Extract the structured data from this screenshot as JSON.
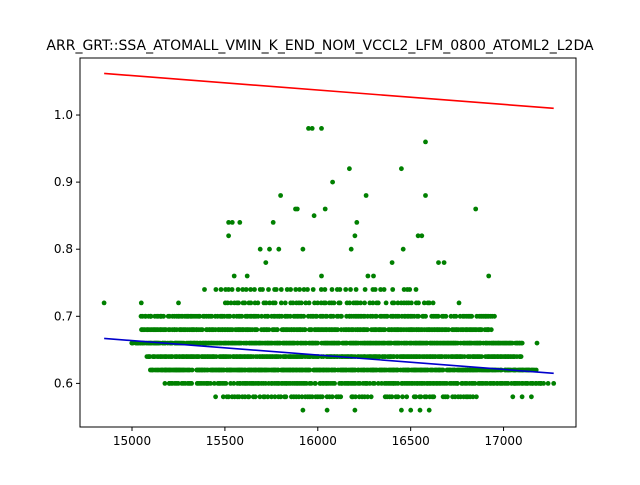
{
  "chart_data": {
    "type": "scatter",
    "title": "ARR_GRT::SSA_ATOMALL_VMIN_K_END_NOM_VCCL2_LFM_0800_ATOML2_L2DA",
    "xlabel": "",
    "ylabel": "",
    "xlim": [
      14720,
      17390
    ],
    "ylim": [
      0.535,
      1.085
    ],
    "xticks": [
      15000,
      15500,
      16000,
      16500,
      17000
    ],
    "yticks": [
      0.6,
      0.7,
      0.8,
      0.9,
      1.0
    ],
    "xtick_labels": [
      "15000",
      "15500",
      "16000",
      "16500",
      "17000"
    ],
    "ytick_labels": [
      "0.6",
      "0.7",
      "0.8",
      "0.9",
      "1.0"
    ],
    "grid": false,
    "legend": "none",
    "point_color": "#008000",
    "dense_bands": [
      {
        "y": 0.58,
        "x_range": [
          15480,
          16860
        ],
        "step": 14
      },
      {
        "y": 0.6,
        "x_range": [
          15180,
          17220
        ],
        "step": 9
      },
      {
        "y": 0.62,
        "x_range": [
          15100,
          17180
        ],
        "step": 6
      },
      {
        "y": 0.64,
        "x_range": [
          15080,
          17100
        ],
        "step": 6
      },
      {
        "y": 0.66,
        "x_range": [
          15000,
          17100
        ],
        "step": 6
      },
      {
        "y": 0.68,
        "x_range": [
          15050,
          16950
        ],
        "step": 7
      },
      {
        "y": 0.7,
        "x_range": [
          15050,
          16950
        ],
        "step": 9
      },
      {
        "y": 0.72,
        "x_range": [
          15500,
          16620
        ],
        "step": 16
      },
      {
        "y": 0.74,
        "x_range": [
          15400,
          16550
        ],
        "step": 24
      }
    ],
    "points": [
      [
        14850,
        0.72
      ],
      [
        15050,
        0.72
      ],
      [
        15100,
        0.7
      ],
      [
        15130,
        0.66
      ],
      [
        15160,
        0.7
      ],
      [
        15200,
        0.6
      ],
      [
        15180,
        0.62
      ],
      [
        15250,
        0.72
      ],
      [
        15300,
        0.7
      ],
      [
        15390,
        0.74
      ],
      [
        15520,
        0.82
      ],
      [
        15520,
        0.84
      ],
      [
        15540,
        0.84
      ],
      [
        15580,
        0.84
      ],
      [
        15550,
        0.76
      ],
      [
        15580,
        0.68
      ],
      [
        15620,
        0.76
      ],
      [
        15690,
        0.8
      ],
      [
        15720,
        0.78
      ],
      [
        15740,
        0.8
      ],
      [
        15760,
        0.84
      ],
      [
        15790,
        0.8
      ],
      [
        15800,
        0.88
      ],
      [
        15880,
        0.86
      ],
      [
        15890,
        0.86
      ],
      [
        15920,
        0.8
      ],
      [
        15950,
        0.98
      ],
      [
        15970,
        0.98
      ],
      [
        15980,
        0.85
      ],
      [
        16020,
        0.98
      ],
      [
        16020,
        0.76
      ],
      [
        16040,
        0.86
      ],
      [
        16080,
        0.9
      ],
      [
        16170,
        0.92
      ],
      [
        16180,
        0.8
      ],
      [
        16200,
        0.82
      ],
      [
        16210,
        0.84
      ],
      [
        16260,
        0.88
      ],
      [
        16270,
        0.76
      ],
      [
        16300,
        0.76
      ],
      [
        16400,
        0.78
      ],
      [
        16450,
        0.92
      ],
      [
        16460,
        0.8
      ],
      [
        16540,
        0.82
      ],
      [
        16560,
        0.82
      ],
      [
        16580,
        0.88
      ],
      [
        16580,
        0.96
      ],
      [
        16650,
        0.78
      ],
      [
        16680,
        0.78
      ],
      [
        16760,
        0.72
      ],
      [
        16850,
        0.86
      ],
      [
        16900,
        0.7
      ],
      [
        16920,
        0.76
      ],
      [
        16920,
        0.68
      ],
      [
        17180,
        0.66
      ],
      [
        17050,
        0.58
      ],
      [
        17100,
        0.58
      ],
      [
        17150,
        0.58
      ],
      [
        17200,
        0.6
      ],
      [
        17240,
        0.6
      ],
      [
        17270,
        0.6
      ],
      [
        15450,
        0.58
      ],
      [
        16450,
        0.56
      ],
      [
        16500,
        0.56
      ],
      [
        16550,
        0.56
      ],
      [
        16600,
        0.56
      ],
      [
        16050,
        0.56
      ],
      [
        15920,
        0.56
      ],
      [
        16200,
        0.56
      ]
    ],
    "series": [
      {
        "type": "line",
        "color": "#ff0000",
        "x": [
          14850,
          17270
        ],
        "y": [
          1.062,
          1.01
        ]
      },
      {
        "type": "line",
        "color": "#0000cc",
        "x": [
          14850,
          17270
        ],
        "y": [
          0.667,
          0.615
        ]
      }
    ]
  }
}
